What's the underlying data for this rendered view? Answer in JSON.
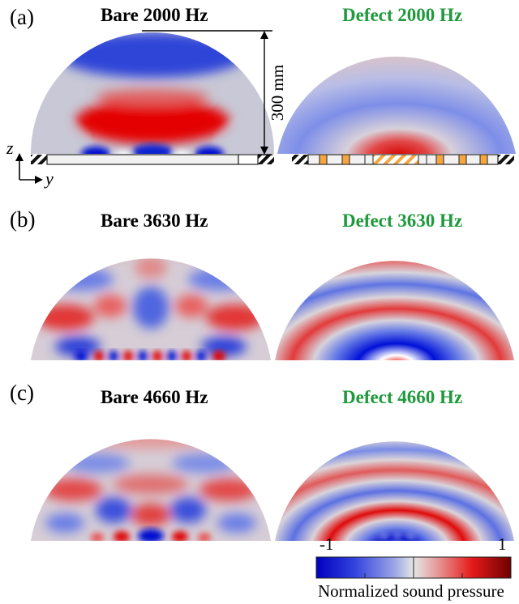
{
  "panels": [
    {
      "label": "(a)",
      "left_title": "Bare 2000 Hz",
      "right_title": "Defect 2000 Hz"
    },
    {
      "label": "(b)",
      "left_title": "Bare 3630 Hz",
      "right_title": "Defect 3630 Hz"
    },
    {
      "label": "(c)",
      "left_title": "Bare 4660 Hz",
      "right_title": "Defect 4660 Hz"
    }
  ],
  "dimension": {
    "text": "300 mm"
  },
  "axes": {
    "z": "z",
    "y": "y"
  },
  "colorbar": {
    "min": "-1",
    "max": "1",
    "label": "Normalized sound pressure",
    "colors": [
      "#0000c8",
      "#5a6ee6",
      "#c8c8d2",
      "#e66e6e",
      "#c80000",
      "#7a0000"
    ]
  },
  "colors": {
    "bare_title": "#000000",
    "defect_title": "#1e9a3c",
    "plate_fill": "#f2f2f2",
    "defect_cells": "#f5a640"
  }
}
